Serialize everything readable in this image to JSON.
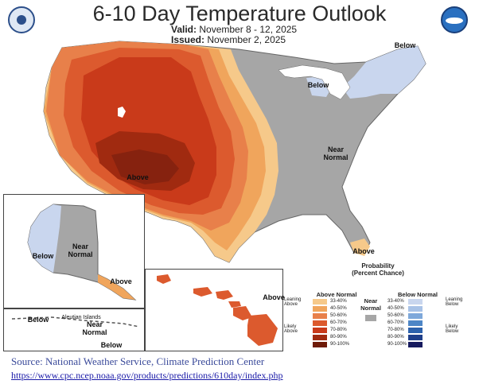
{
  "title": "6-10 Day Temperature Outlook",
  "valid_label": "Valid:",
  "valid_dates": "November 8 - 12, 2025",
  "issued_label": "Issued:",
  "issued_date": "November 2, 2025",
  "map_labels": {
    "above_central": "Above",
    "below_ne": "Below",
    "below_mi": "Below",
    "near_normal_east": "Near\nNormal",
    "above_fl": "Above",
    "ak_below": "Below",
    "ak_near_normal": "Near\nNormal",
    "ak_above": "Above",
    "hi_above": "Above",
    "aleut_below": "Below",
    "aleut_title": "Aleutian Islands",
    "aleut_near_normal": "Near\nNormal",
    "aleut_below2": "Below"
  },
  "legend": {
    "title": "Probability\n(Percent Chance)",
    "above_header": "Above Normal",
    "near_header": "Near\nNormal",
    "below_header": "Below Normal",
    "leaning_above": "Leaning\nAbove",
    "likely_above": "Likely\nAbove",
    "leaning_below": "Leaning\nBelow",
    "likely_below": "Likely\nBelow",
    "ranges": [
      "33-40%",
      "40-50%",
      "50-60%",
      "60-70%",
      "70-80%",
      "80-90%",
      "90-100%"
    ],
    "above_colors": [
      "#f6c98a",
      "#f0a55c",
      "#e8804a",
      "#dc5a2e",
      "#c93a1a",
      "#a02a10",
      "#6e1a08"
    ],
    "below_colors": [
      "#c9d6ee",
      "#a8c2e6",
      "#7ea8da",
      "#4d86c6",
      "#2d62ac",
      "#1f3f8a",
      "#161a5e"
    ],
    "near_color": "#a6a6a6"
  },
  "source_line": "Source: National Weather Service, Climate Prediction Center",
  "source_url": "https://www.cpc.ncep.noaa.gov/products/predictions/610day/index.php"
}
